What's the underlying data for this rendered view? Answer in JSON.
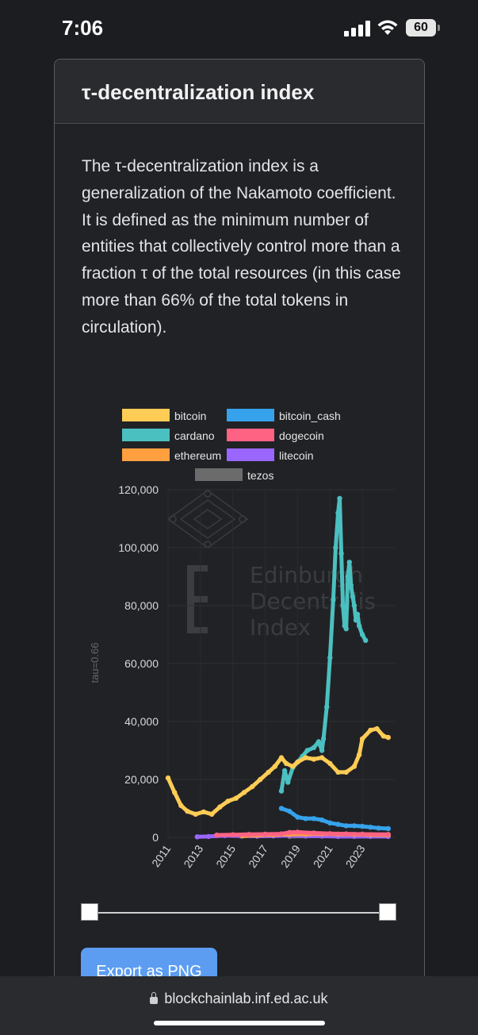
{
  "status_bar": {
    "time": "7:06",
    "battery": "60"
  },
  "card": {
    "title": "τ-decentralization index",
    "description": "The τ-decentralization index is a generalization of the Nakamoto coefficient. It is defined as the minimum number of entities that collectively control more than a fraction τ of the total resources (in this case more than 66% of the total tokens in circulation)."
  },
  "watermark": {
    "line1": "Edinburgh",
    "line2": "Decentralis",
    "line3": "Index"
  },
  "chart_data": {
    "type": "line",
    "ylabel": "tau=0.66",
    "ylim": [
      0,
      120000
    ],
    "xlim": [
      2011,
      2025
    ],
    "yticks": [
      "0",
      "20,000",
      "40,000",
      "60,000",
      "80,000",
      "100,000",
      "120,000"
    ],
    "xticks": [
      "2011",
      "2013",
      "2015",
      "2017",
      "2019",
      "2021",
      "2023"
    ],
    "legend_position": "top",
    "series": [
      {
        "name": "bitcoin",
        "color": "#ffcc55",
        "points": [
          [
            2011.0,
            20500
          ],
          [
            2011.4,
            15500
          ],
          [
            2011.8,
            11000
          ],
          [
            2012.2,
            9000
          ],
          [
            2012.7,
            8000
          ],
          [
            2013.2,
            8800
          ],
          [
            2013.7,
            8000
          ],
          [
            2014.2,
            10500
          ],
          [
            2014.7,
            12500
          ],
          [
            2015.2,
            13500
          ],
          [
            2015.7,
            15500
          ],
          [
            2016.2,
            17500
          ],
          [
            2016.7,
            20000
          ],
          [
            2017.2,
            22500
          ],
          [
            2017.6,
            24500
          ],
          [
            2018.0,
            27500
          ],
          [
            2018.3,
            25500
          ],
          [
            2018.7,
            24500
          ],
          [
            2019.0,
            26000
          ],
          [
            2019.5,
            27500
          ],
          [
            2020.0,
            27000
          ],
          [
            2020.5,
            27500
          ],
          [
            2021.0,
            25500
          ],
          [
            2021.5,
            22500
          ],
          [
            2022.0,
            22500
          ],
          [
            2022.5,
            24500
          ],
          [
            2022.8,
            28500
          ],
          [
            2023.0,
            34000
          ],
          [
            2023.5,
            37000
          ],
          [
            2023.9,
            37500
          ],
          [
            2024.3,
            35000
          ],
          [
            2024.6,
            34500
          ]
        ]
      },
      {
        "name": "bitcoin_cash",
        "color": "#36a2eb",
        "points": [
          [
            2018.0,
            10000
          ],
          [
            2018.5,
            9000
          ],
          [
            2019.0,
            7000
          ],
          [
            2019.5,
            6500
          ],
          [
            2020.0,
            6500
          ],
          [
            2020.5,
            6000
          ],
          [
            2021.0,
            5000
          ],
          [
            2021.5,
            4500
          ],
          [
            2022.0,
            4000
          ],
          [
            2022.5,
            4000
          ],
          [
            2023.0,
            3800
          ],
          [
            2023.5,
            3500
          ],
          [
            2024.0,
            3200
          ],
          [
            2024.6,
            3000
          ]
        ]
      },
      {
        "name": "cardano",
        "color": "#4bc0c0",
        "points": [
          [
            2018.0,
            16000
          ],
          [
            2018.2,
            23000
          ],
          [
            2018.4,
            19000
          ],
          [
            2018.7,
            24000
          ],
          [
            2019.0,
            26000
          ],
          [
            2019.3,
            28000
          ],
          [
            2019.6,
            30000
          ],
          [
            2020.0,
            31000
          ],
          [
            2020.3,
            33000
          ],
          [
            2020.5,
            30000
          ],
          [
            2020.6,
            34000
          ],
          [
            2020.8,
            45000
          ],
          [
            2021.0,
            62000
          ],
          [
            2021.2,
            82000
          ],
          [
            2021.35,
            100000
          ],
          [
            2021.5,
            112000
          ],
          [
            2021.6,
            117000
          ],
          [
            2021.7,
            98000
          ],
          [
            2021.8,
            80000
          ],
          [
            2021.9,
            73000
          ],
          [
            2022.0,
            72000
          ],
          [
            2022.1,
            90000
          ],
          [
            2022.2,
            95000
          ],
          [
            2022.3,
            87000
          ],
          [
            2022.4,
            83000
          ],
          [
            2022.5,
            80000
          ],
          [
            2022.6,
            75000
          ],
          [
            2022.7,
            77000
          ],
          [
            2022.8,
            73000
          ],
          [
            2023.0,
            70000
          ],
          [
            2023.2,
            68000
          ]
        ]
      },
      {
        "name": "dogecoin",
        "color": "#ff6384",
        "points": [
          [
            2014.0,
            800
          ],
          [
            2015.0,
            900
          ],
          [
            2016.0,
            1000
          ],
          [
            2017.0,
            1100
          ],
          [
            2018.0,
            1200
          ],
          [
            2018.5,
            1700
          ],
          [
            2019.0,
            1800
          ],
          [
            2020.0,
            1500
          ],
          [
            2021.0,
            1300
          ],
          [
            2022.0,
            1200
          ],
          [
            2023.0,
            1100
          ],
          [
            2024.6,
            1000
          ]
        ]
      },
      {
        "name": "ethereum",
        "color": "#ff9f40",
        "points": [
          [
            2015.6,
            500
          ],
          [
            2016.5,
            700
          ],
          [
            2017.5,
            900
          ],
          [
            2018.5,
            1000
          ],
          [
            2019.5,
            1100
          ],
          [
            2020.5,
            1200
          ],
          [
            2021.5,
            1100
          ],
          [
            2022.5,
            1000
          ],
          [
            2023.5,
            900
          ],
          [
            2024.6,
            800
          ]
        ]
      },
      {
        "name": "litecoin",
        "color": "#9966ff",
        "points": [
          [
            2012.8,
            200
          ],
          [
            2013.5,
            300
          ],
          [
            2014.5,
            600
          ],
          [
            2015.5,
            500
          ],
          [
            2016.5,
            400
          ],
          [
            2017.5,
            500
          ],
          [
            2018.5,
            600
          ],
          [
            2019.5,
            500
          ],
          [
            2020.5,
            400
          ],
          [
            2021.5,
            300
          ],
          [
            2022.5,
            300
          ],
          [
            2023.5,
            300
          ],
          [
            2024.6,
            300
          ]
        ]
      },
      {
        "name": "tezos",
        "color": "#6b6b6b",
        "points": [
          [
            2018.5,
            300
          ],
          [
            2019.5,
            400
          ],
          [
            2020.5,
            500
          ],
          [
            2021.5,
            600
          ],
          [
            2022.5,
            500
          ],
          [
            2023.5,
            400
          ],
          [
            2024.6,
            400
          ]
        ]
      }
    ]
  },
  "export_button": {
    "label": "Export as PNG"
  },
  "browser": {
    "url": "blockchainlab.inf.ed.ac.uk"
  }
}
